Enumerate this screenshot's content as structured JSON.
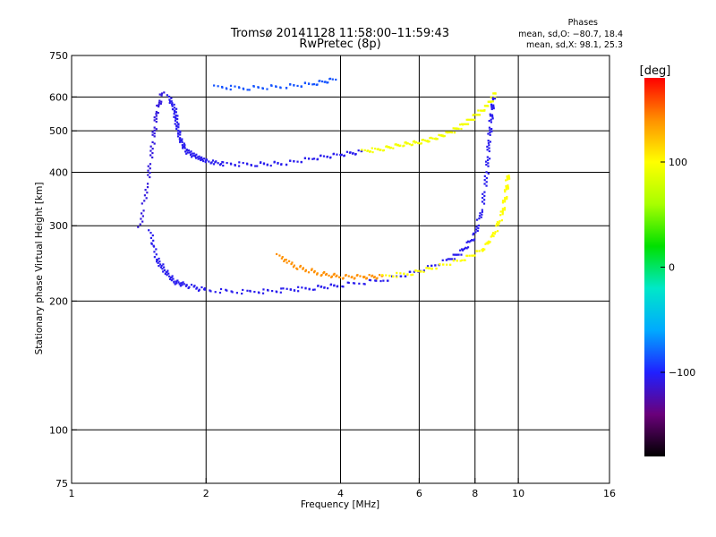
{
  "chart_data": {
    "type": "scatter",
    "title": "Tromsø 20141128 11:58:00–11:59:43",
    "subtitle": "RwPretec (8p)",
    "xlabel": "Frequency [MHz]",
    "ylabel": "Stationary phase Virtual Height [km]",
    "xscale": "log",
    "yscale": "log",
    "xlim": [
      1,
      16
    ],
    "ylim": [
      75,
      750
    ],
    "xticks": [
      1,
      2,
      4,
      6,
      8,
      10,
      16
    ],
    "yticks": [
      75,
      100,
      200,
      300,
      400,
      500,
      600,
      750
    ],
    "x_gridlines": [
      2,
      4,
      6,
      8,
      10
    ],
    "y_gridlines": [
      100,
      200,
      300,
      400,
      500,
      600
    ],
    "grid": true,
    "phases": {
      "header": "Phases",
      "line_o": "mean, sd,O: −80.7, 18.4",
      "line_x": "mean, sd,X:  98.1, 25.3"
    },
    "colorbar": {
      "label": "[deg]",
      "range": [
        -180,
        180
      ],
      "ticks": [
        100,
        0,
        -100
      ],
      "tick_labels": [
        "100",
        "0",
        "−100"
      ],
      "stops": [
        "#000000",
        "#6a007a",
        "#2020ff",
        "#00aaff",
        "#00e8c8",
        "#00e000",
        "#a8ff00",
        "#ffff00",
        "#ff9000",
        "#ff0000"
      ]
    },
    "traces": [
      {
        "name": "",
        "points": [
          [
            1.65,
            600
          ],
          [
            1.7,
            560
          ],
          [
            1.72,
            520
          ],
          [
            1.75,
            480
          ],
          [
            1.8,
            450
          ],
          [
            1.9,
            435
          ],
          [
            2.0,
            425
          ],
          [
            2.2,
            418
          ],
          [
            2.6,
            418
          ],
          [
            3.0,
            420
          ],
          [
            3.5,
            432
          ],
          [
            4.0,
            440
          ],
          [
            4.5,
            447
          ]
        ],
        "phase": -105
      },
      {
        "name": "",
        "points": [
          [
            4.5,
            447
          ],
          [
            5.0,
            455
          ],
          [
            5.5,
            465
          ],
          [
            6.0,
            470
          ],
          [
            6.5,
            480
          ],
          [
            7.0,
            495
          ],
          [
            7.5,
            515
          ],
          [
            8.0,
            540
          ],
          [
            8.4,
            565
          ],
          [
            8.7,
            590
          ],
          [
            8.9,
            615
          ]
        ],
        "phase": 95
      },
      {
        "name": "",
        "points": [
          [
            2.1,
            632
          ],
          [
            2.5,
            630
          ],
          [
            3.0,
            635
          ],
          [
            3.5,
            645
          ],
          [
            3.9,
            660
          ]
        ],
        "phase": -85
      },
      {
        "name": "",
        "points": [
          [
            1.5,
            290
          ],
          [
            1.55,
            250
          ],
          [
            1.62,
            235
          ],
          [
            1.7,
            222
          ],
          [
            1.8,
            218
          ],
          [
            2.0,
            212
          ],
          [
            2.5,
            210
          ],
          [
            3.0,
            212
          ],
          [
            3.5,
            215
          ],
          [
            4.0,
            218
          ],
          [
            5.0,
            224
          ],
          [
            6.0,
            235
          ],
          [
            7.0,
            250
          ],
          [
            7.5,
            262
          ],
          [
            8.0,
            285
          ],
          [
            8.3,
            330
          ],
          [
            8.5,
            400
          ],
          [
            8.6,
            470
          ],
          [
            8.7,
            540
          ],
          [
            8.8,
            600
          ]
        ],
        "phase": -105
      },
      {
        "name": "",
        "points": [
          [
            2.9,
            255
          ],
          [
            3.2,
            240
          ],
          [
            3.6,
            232
          ],
          [
            4.0,
            228
          ],
          [
            4.5,
            228
          ],
          [
            5.0,
            228
          ]
        ],
        "phase": 140
      },
      {
        "name": "",
        "points": [
          [
            5.0,
            228
          ],
          [
            5.8,
            233
          ],
          [
            6.5,
            240
          ],
          [
            7.5,
            250
          ],
          [
            8.3,
            263
          ],
          [
            8.8,
            285
          ],
          [
            9.2,
            320
          ],
          [
            9.4,
            360
          ],
          [
            9.5,
            400
          ]
        ],
        "phase": 100
      },
      {
        "name": "",
        "points": [
          [
            1.42,
            295
          ],
          [
            1.48,
            380
          ],
          [
            1.52,
            470
          ],
          [
            1.55,
            550
          ],
          [
            1.6,
            620
          ]
        ],
        "phase": -110
      }
    ]
  }
}
